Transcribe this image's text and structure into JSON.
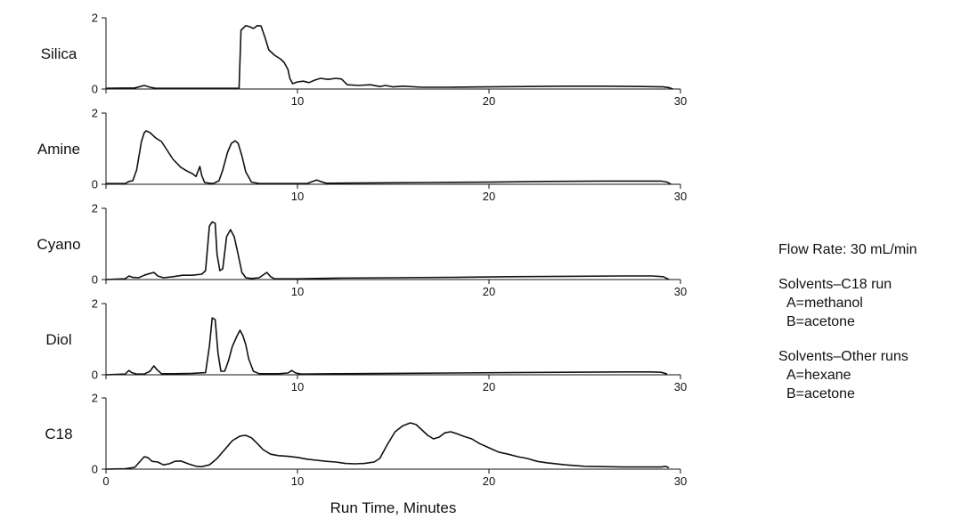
{
  "chart_data": {
    "type": "line",
    "xlabel": "Run Time, Minutes",
    "xlim": [
      0,
      30
    ],
    "x_ticks": [
      0,
      10,
      20,
      30
    ],
    "ylim": [
      0,
      2
    ],
    "y_ticks": [
      0,
      2
    ],
    "grid": false,
    "panels": [
      {
        "name": "Silica",
        "show_x0": false,
        "points": [
          [
            0,
            0.02
          ],
          [
            1.5,
            0.03
          ],
          [
            1.8,
            0.07
          ],
          [
            2.0,
            0.1
          ],
          [
            2.3,
            0.05
          ],
          [
            2.6,
            0.02
          ],
          [
            6.5,
            0.02
          ],
          [
            6.95,
            0.02
          ],
          [
            7.05,
            1.65
          ],
          [
            7.3,
            1.78
          ],
          [
            7.5,
            1.75
          ],
          [
            7.7,
            1.7
          ],
          [
            7.9,
            1.78
          ],
          [
            8.1,
            1.77
          ],
          [
            8.3,
            1.45
          ],
          [
            8.5,
            1.1
          ],
          [
            8.8,
            0.95
          ],
          [
            9.1,
            0.85
          ],
          [
            9.3,
            0.75
          ],
          [
            9.5,
            0.55
          ],
          [
            9.6,
            0.3
          ],
          [
            9.75,
            0.15
          ],
          [
            10.0,
            0.2
          ],
          [
            10.3,
            0.22
          ],
          [
            10.6,
            0.18
          ],
          [
            10.9,
            0.25
          ],
          [
            11.2,
            0.3
          ],
          [
            11.6,
            0.27
          ],
          [
            12.0,
            0.3
          ],
          [
            12.3,
            0.28
          ],
          [
            12.6,
            0.12
          ],
          [
            13.2,
            0.1
          ],
          [
            13.8,
            0.12
          ],
          [
            14.3,
            0.07
          ],
          [
            14.6,
            0.1
          ],
          [
            15.0,
            0.06
          ],
          [
            15.5,
            0.08
          ],
          [
            16.5,
            0.05
          ],
          [
            18,
            0.05
          ],
          [
            20,
            0.06
          ],
          [
            22,
            0.07
          ],
          [
            24,
            0.08
          ],
          [
            26,
            0.08
          ],
          [
            28,
            0.07
          ],
          [
            29.1,
            0.06
          ],
          [
            29.4,
            0.04
          ],
          [
            29.6,
            0.0
          ]
        ]
      },
      {
        "name": "Amine",
        "show_x0": false,
        "points": [
          [
            0,
            0.02
          ],
          [
            1.0,
            0.02
          ],
          [
            1.2,
            0.08
          ],
          [
            1.4,
            0.1
          ],
          [
            1.6,
            0.4
          ],
          [
            1.85,
            1.2
          ],
          [
            2.0,
            1.45
          ],
          [
            2.1,
            1.5
          ],
          [
            2.3,
            1.45
          ],
          [
            2.6,
            1.3
          ],
          [
            2.9,
            1.2
          ],
          [
            3.2,
            0.95
          ],
          [
            3.5,
            0.7
          ],
          [
            3.9,
            0.48
          ],
          [
            4.2,
            0.38
          ],
          [
            4.5,
            0.3
          ],
          [
            4.7,
            0.22
          ],
          [
            4.9,
            0.5
          ],
          [
            5.0,
            0.25
          ],
          [
            5.15,
            0.05
          ],
          [
            5.4,
            0.03
          ],
          [
            5.6,
            0.02
          ],
          [
            5.9,
            0.1
          ],
          [
            6.1,
            0.4
          ],
          [
            6.35,
            0.9
          ],
          [
            6.55,
            1.15
          ],
          [
            6.75,
            1.22
          ],
          [
            6.9,
            1.15
          ],
          [
            7.1,
            0.8
          ],
          [
            7.3,
            0.35
          ],
          [
            7.6,
            0.06
          ],
          [
            8.0,
            0.02
          ],
          [
            10.5,
            0.02
          ],
          [
            10.8,
            0.08
          ],
          [
            11.0,
            0.12
          ],
          [
            11.2,
            0.08
          ],
          [
            11.5,
            0.03
          ],
          [
            14,
            0.04
          ],
          [
            17,
            0.05
          ],
          [
            20,
            0.06
          ],
          [
            23,
            0.08
          ],
          [
            26,
            0.09
          ],
          [
            28,
            0.09
          ],
          [
            29.0,
            0.09
          ],
          [
            29.3,
            0.06
          ],
          [
            29.5,
            0.0
          ]
        ]
      },
      {
        "name": "Cyano",
        "show_x0": false,
        "points": [
          [
            0,
            0.0
          ],
          [
            1.0,
            0.02
          ],
          [
            1.2,
            0.1
          ],
          [
            1.4,
            0.06
          ],
          [
            1.7,
            0.05
          ],
          [
            2.0,
            0.12
          ],
          [
            2.3,
            0.17
          ],
          [
            2.5,
            0.2
          ],
          [
            2.7,
            0.1
          ],
          [
            3.0,
            0.05
          ],
          [
            3.5,
            0.08
          ],
          [
            4.0,
            0.12
          ],
          [
            4.5,
            0.12
          ],
          [
            5.0,
            0.15
          ],
          [
            5.2,
            0.25
          ],
          [
            5.4,
            1.5
          ],
          [
            5.55,
            1.62
          ],
          [
            5.7,
            1.58
          ],
          [
            5.8,
            0.7
          ],
          [
            5.95,
            0.25
          ],
          [
            6.1,
            0.3
          ],
          [
            6.3,
            1.2
          ],
          [
            6.5,
            1.4
          ],
          [
            6.7,
            1.2
          ],
          [
            6.9,
            0.7
          ],
          [
            7.1,
            0.2
          ],
          [
            7.3,
            0.05
          ],
          [
            7.6,
            0.03
          ],
          [
            8.0,
            0.05
          ],
          [
            8.4,
            0.2
          ],
          [
            8.6,
            0.08
          ],
          [
            8.8,
            0.02
          ],
          [
            10,
            0.02
          ],
          [
            12,
            0.04
          ],
          [
            15,
            0.05
          ],
          [
            18,
            0.06
          ],
          [
            21,
            0.08
          ],
          [
            24,
            0.09
          ],
          [
            27,
            0.1
          ],
          [
            28.5,
            0.1
          ],
          [
            29.1,
            0.08
          ],
          [
            29.4,
            0.0
          ]
        ]
      },
      {
        "name": "Diol",
        "show_x0": false,
        "points": [
          [
            0,
            0.0
          ],
          [
            1.0,
            0.02
          ],
          [
            1.2,
            0.12
          ],
          [
            1.35,
            0.06
          ],
          [
            1.6,
            0.02
          ],
          [
            2.0,
            0.02
          ],
          [
            2.3,
            0.1
          ],
          [
            2.5,
            0.25
          ],
          [
            2.65,
            0.15
          ],
          [
            2.9,
            0.03
          ],
          [
            3.5,
            0.03
          ],
          [
            4.5,
            0.04
          ],
          [
            5.2,
            0.06
          ],
          [
            5.4,
            0.8
          ],
          [
            5.55,
            1.6
          ],
          [
            5.7,
            1.55
          ],
          [
            5.85,
            0.6
          ],
          [
            6.0,
            0.1
          ],
          [
            6.2,
            0.1
          ],
          [
            6.4,
            0.4
          ],
          [
            6.6,
            0.8
          ],
          [
            6.85,
            1.1
          ],
          [
            7.0,
            1.25
          ],
          [
            7.15,
            1.1
          ],
          [
            7.3,
            0.85
          ],
          [
            7.45,
            0.45
          ],
          [
            7.7,
            0.1
          ],
          [
            8.0,
            0.03
          ],
          [
            9.0,
            0.03
          ],
          [
            9.5,
            0.05
          ],
          [
            9.7,
            0.12
          ],
          [
            9.9,
            0.05
          ],
          [
            10.2,
            0.02
          ],
          [
            12,
            0.03
          ],
          [
            15,
            0.04
          ],
          [
            18,
            0.05
          ],
          [
            21,
            0.06
          ],
          [
            24,
            0.07
          ],
          [
            27,
            0.08
          ],
          [
            28.5,
            0.08
          ],
          [
            29.0,
            0.07
          ],
          [
            29.3,
            0.02
          ]
        ]
      },
      {
        "name": "C18",
        "show_x0": true,
        "points": [
          [
            0,
            0.0
          ],
          [
            1.0,
            0.01
          ],
          [
            1.5,
            0.05
          ],
          [
            1.75,
            0.2
          ],
          [
            2.0,
            0.35
          ],
          [
            2.2,
            0.32
          ],
          [
            2.4,
            0.22
          ],
          [
            2.7,
            0.2
          ],
          [
            3.0,
            0.12
          ],
          [
            3.3,
            0.15
          ],
          [
            3.6,
            0.22
          ],
          [
            3.9,
            0.23
          ],
          [
            4.3,
            0.15
          ],
          [
            4.7,
            0.08
          ],
          [
            5.0,
            0.07
          ],
          [
            5.4,
            0.12
          ],
          [
            5.8,
            0.3
          ],
          [
            6.2,
            0.55
          ],
          [
            6.6,
            0.8
          ],
          [
            7.0,
            0.93
          ],
          [
            7.3,
            0.95
          ],
          [
            7.6,
            0.88
          ],
          [
            7.9,
            0.72
          ],
          [
            8.2,
            0.55
          ],
          [
            8.6,
            0.42
          ],
          [
            9.0,
            0.38
          ],
          [
            9.5,
            0.36
          ],
          [
            10.0,
            0.33
          ],
          [
            10.5,
            0.28
          ],
          [
            11.0,
            0.25
          ],
          [
            11.5,
            0.22
          ],
          [
            12.0,
            0.2
          ],
          [
            12.5,
            0.16
          ],
          [
            13.0,
            0.15
          ],
          [
            13.5,
            0.16
          ],
          [
            14.0,
            0.2
          ],
          [
            14.3,
            0.3
          ],
          [
            14.7,
            0.7
          ],
          [
            15.1,
            1.05
          ],
          [
            15.5,
            1.22
          ],
          [
            15.9,
            1.3
          ],
          [
            16.2,
            1.25
          ],
          [
            16.5,
            1.1
          ],
          [
            16.8,
            0.95
          ],
          [
            17.1,
            0.85
          ],
          [
            17.4,
            0.9
          ],
          [
            17.7,
            1.02
          ],
          [
            18.0,
            1.05
          ],
          [
            18.3,
            1.0
          ],
          [
            18.7,
            0.92
          ],
          [
            19.1,
            0.85
          ],
          [
            19.5,
            0.72
          ],
          [
            20.0,
            0.6
          ],
          [
            20.5,
            0.48
          ],
          [
            21.0,
            0.42
          ],
          [
            21.5,
            0.35
          ],
          [
            22.0,
            0.3
          ],
          [
            22.5,
            0.22
          ],
          [
            23.0,
            0.18
          ],
          [
            24.0,
            0.12
          ],
          [
            25.0,
            0.08
          ],
          [
            26,
            0.07
          ],
          [
            27,
            0.06
          ],
          [
            28,
            0.06
          ],
          [
            29.0,
            0.06
          ],
          [
            29.2,
            0.08
          ],
          [
            29.4,
            0.04
          ]
        ]
      }
    ]
  },
  "notes": {
    "flow_rate": "Flow Rate: 30 mL/min",
    "c18_solvents_title": "Solvents–C18 run",
    "c18_solvent_a": "A=methanol",
    "c18_solvent_b": "B=acetone",
    "other_solvents_title": "Solvents–Other runs",
    "other_solvent_a": "A=hexane",
    "other_solvent_b": "B=acetone"
  }
}
